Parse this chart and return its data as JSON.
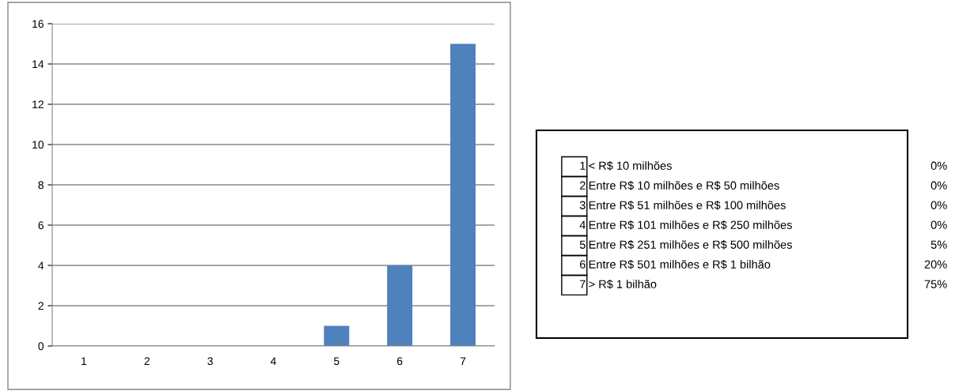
{
  "chart_data": {
    "type": "bar",
    "categories": [
      "1",
      "2",
      "3",
      "4",
      "5",
      "6",
      "7"
    ],
    "values": [
      0,
      0,
      0,
      0,
      1,
      4,
      15
    ],
    "color": "#4f81bd",
    "ylim": [
      0,
      16
    ],
    "yticks": [
      0,
      2,
      4,
      6,
      8,
      10,
      12,
      14,
      16
    ],
    "grid": "y",
    "legend": false,
    "annotations": [
      "1",
      "< R$ 10 milhões",
      "0%",
      "2",
      "Entre R$ 10 milhões e R$ 50 milhões",
      "0%",
      "3",
      "Entre R$ 51 milhões e R$ 100 milhões",
      "0%",
      "4",
      "Entre R$ 101 milhões e R$ 250 milhões",
      "0%",
      "5",
      "Entre R$ 251 milhões e R$ 500 milhões",
      "5%",
      "6",
      "Entre R$ 501 milhões e R$ 1 bilhão",
      "20%",
      "7",
      "> R$ 1 bilhão",
      "75%"
    ]
  }
}
